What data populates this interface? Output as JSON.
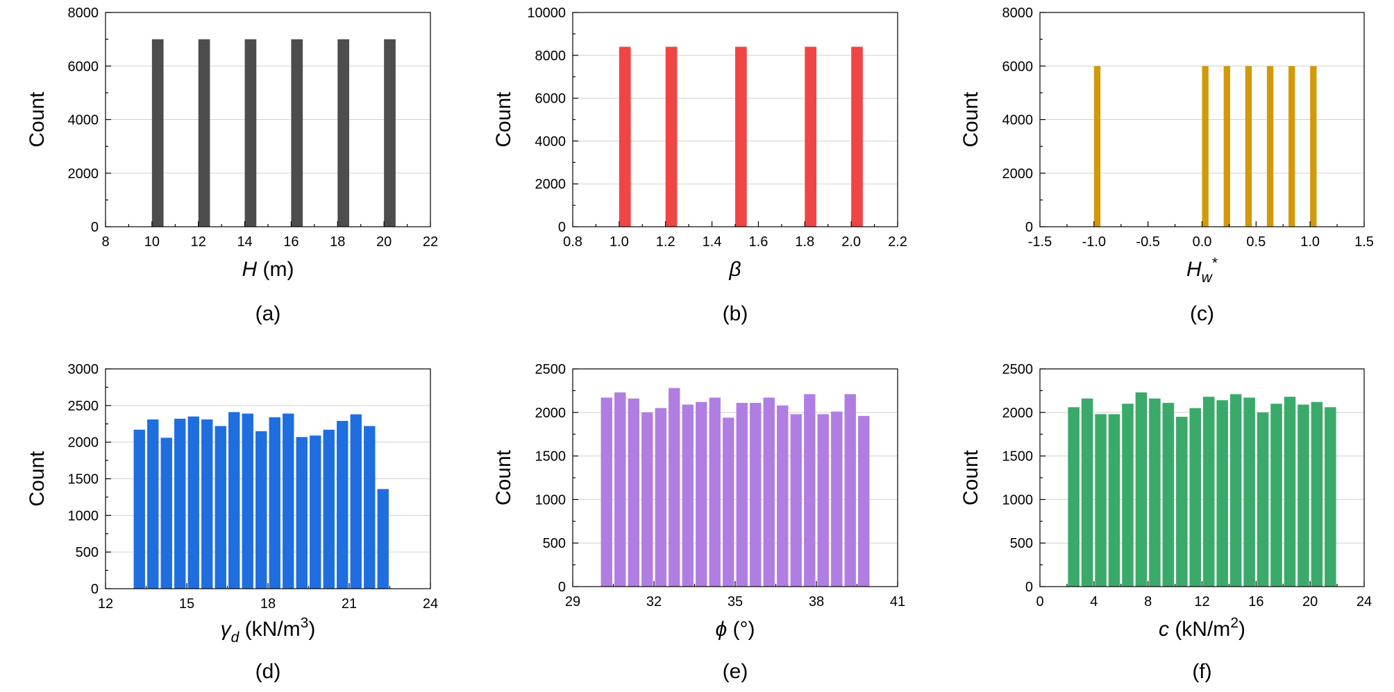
{
  "ylabel_common": "Count",
  "chart_data": [
    {
      "type": "bar",
      "panel": "(a)",
      "xlabel_parts": [
        [
          "H",
          "i"
        ],
        [
          " (m)",
          ""
        ]
      ],
      "ylabel": "Count",
      "xlim": [
        8,
        22
      ],
      "ylim": [
        0,
        8000
      ],
      "xticks": [
        8,
        10,
        12,
        14,
        16,
        18,
        20,
        22
      ],
      "xtick_labels": [
        "8",
        "10",
        "12",
        "14",
        "16",
        "18",
        "20",
        "22"
      ],
      "yticks": [
        0,
        2000,
        4000,
        6000,
        8000
      ],
      "ytick_labels": [
        "0",
        "2000",
        "4000",
        "6000",
        "8000"
      ],
      "bar_width": 0.5,
      "color": "#4d4d4d",
      "x": [
        10.25,
        12.25,
        14.25,
        16.25,
        18.25,
        20.25
      ],
      "values": [
        7000,
        7000,
        7000,
        7000,
        7000,
        7000
      ],
      "grid": true
    },
    {
      "type": "bar",
      "panel": "(b)",
      "xlabel_parts": [
        [
          "β",
          "i"
        ]
      ],
      "ylabel": "Count",
      "xlim": [
        0.8,
        2.2
      ],
      "ylim": [
        0,
        10000
      ],
      "xticks": [
        0.8,
        1.0,
        1.2,
        1.4,
        1.6,
        1.8,
        2.0,
        2.2
      ],
      "xtick_labels": [
        "0.8",
        "1.0",
        "1.2",
        "1.4",
        "1.6",
        "1.8",
        "2.0",
        "2.2"
      ],
      "yticks": [
        0,
        2000,
        4000,
        6000,
        8000,
        10000
      ],
      "ytick_labels": [
        "0",
        "2000",
        "4000",
        "6000",
        "8000",
        "10000"
      ],
      "bar_width": 0.05,
      "color": "#f04545",
      "x": [
        1.025,
        1.225,
        1.525,
        1.825,
        2.025
      ],
      "values": [
        8400,
        8400,
        8400,
        8400,
        8400
      ],
      "grid": true
    },
    {
      "type": "bar",
      "panel": "(c)",
      "xlabel_parts": [
        [
          "H",
          "i"
        ],
        [
          "w",
          "isub"
        ],
        [
          "*",
          "sup"
        ]
      ],
      "ylabel": "Count",
      "xlim": [
        -1.5,
        1.5
      ],
      "ylim": [
        0,
        8000
      ],
      "xticks": [
        -1.5,
        -1.0,
        -0.5,
        0.0,
        0.5,
        1.0,
        1.5
      ],
      "xtick_labels": [
        "-1.5",
        "-1.0",
        "-0.5",
        "0.0",
        "0.5",
        "1.0",
        "1.5"
      ],
      "yticks": [
        0,
        2000,
        4000,
        6000,
        8000
      ],
      "ytick_labels": [
        "0",
        "2000",
        "4000",
        "6000",
        "8000"
      ],
      "bar_width": 0.06,
      "color": "#d29a0a",
      "x": [
        -0.97,
        0.03,
        0.23,
        0.43,
        0.63,
        0.83,
        1.03
      ],
      "values": [
        6000,
        6000,
        6000,
        6000,
        6000,
        6000,
        6000
      ],
      "grid": true
    },
    {
      "type": "bar",
      "panel": "(d)",
      "xlabel_parts": [
        [
          "γ",
          "i"
        ],
        [
          "d",
          "isub"
        ],
        [
          " (kN/m",
          ""
        ],
        [
          "3",
          "sup"
        ],
        [
          ")",
          ""
        ]
      ],
      "ylabel": "Count",
      "xlim": [
        12,
        24
      ],
      "ylim": [
        0,
        3000
      ],
      "xticks": [
        12,
        15,
        18,
        21,
        24
      ],
      "xtick_labels": [
        "12",
        "15",
        "18",
        "21",
        "24"
      ],
      "yticks": [
        0,
        500,
        1000,
        1500,
        2000,
        2500,
        3000
      ],
      "ytick_labels": [
        "0",
        "500",
        "1000",
        "1500",
        "2000",
        "2500",
        "3000"
      ],
      "bar_width": 0.42,
      "color": "#1f6ee0",
      "x": [
        13.25,
        13.75,
        14.25,
        14.75,
        15.25,
        15.75,
        16.25,
        16.75,
        17.25,
        17.75,
        18.25,
        18.75,
        19.25,
        19.75,
        20.25,
        20.75,
        21.25,
        21.75,
        22.25
      ],
      "values": [
        2170,
        2310,
        2060,
        2320,
        2350,
        2310,
        2220,
        2410,
        2390,
        2150,
        2340,
        2390,
        2070,
        2090,
        2170,
        2290,
        2380,
        2220,
        1360
      ],
      "grid": true
    },
    {
      "type": "bar",
      "panel": "(e)",
      "xlabel_parts": [
        [
          "ϕ",
          "i"
        ],
        [
          " (°)",
          ""
        ]
      ],
      "ylabel": "Count",
      "xlim": [
        29,
        41
      ],
      "ylim": [
        0,
        2500
      ],
      "xticks": [
        29,
        32,
        35,
        38,
        41
      ],
      "xtick_labels": [
        "29",
        "32",
        "35",
        "38",
        "41"
      ],
      "yticks": [
        0,
        500,
        1000,
        1500,
        2000,
        2500
      ],
      "ytick_labels": [
        "0",
        "500",
        "1000",
        "1500",
        "2000",
        "2500"
      ],
      "bar_width": 0.42,
      "color": "#b07ee2",
      "x": [
        30.25,
        30.75,
        31.25,
        31.75,
        32.25,
        32.75,
        33.25,
        33.75,
        34.25,
        34.75,
        35.25,
        35.75,
        36.25,
        36.75,
        37.25,
        37.75,
        38.25,
        38.75,
        39.25,
        39.75
      ],
      "values": [
        2170,
        2230,
        2160,
        2000,
        2050,
        2280,
        2090,
        2120,
        2170,
        1940,
        2110,
        2110,
        2170,
        2080,
        1980,
        2210,
        1980,
        2010,
        2210,
        1960
      ],
      "grid": true
    },
    {
      "type": "bar",
      "panel": "(f)",
      "xlabel_parts": [
        [
          "c",
          "i"
        ],
        [
          " (kN/m",
          ""
        ],
        [
          "2",
          "sup"
        ],
        [
          ")",
          ""
        ]
      ],
      "ylabel": "Count",
      "xlim": [
        0,
        24
      ],
      "ylim": [
        0,
        2500
      ],
      "xticks": [
        0,
        4,
        8,
        12,
        16,
        20,
        24
      ],
      "xtick_labels": [
        "0",
        "4",
        "8",
        "12",
        "16",
        "20",
        "24"
      ],
      "yticks": [
        0,
        500,
        1000,
        1500,
        2000,
        2500
      ],
      "ytick_labels": [
        "0",
        "500",
        "1000",
        "1500",
        "2000",
        "2500"
      ],
      "bar_width": 0.85,
      "color": "#3aaa6a",
      "x": [
        2.5,
        3.5,
        4.5,
        5.5,
        6.5,
        7.5,
        8.5,
        9.5,
        10.5,
        11.5,
        12.5,
        13.5,
        14.5,
        15.5,
        16.5,
        17.5,
        18.5,
        19.5,
        20.5,
        21.5
      ],
      "values": [
        2060,
        2160,
        1980,
        1980,
        2100,
        2230,
        2160,
        2110,
        1950,
        2050,
        2180,
        2140,
        2210,
        2170,
        2000,
        2100,
        2180,
        2090,
        2120,
        2060
      ],
      "grid": true
    }
  ]
}
